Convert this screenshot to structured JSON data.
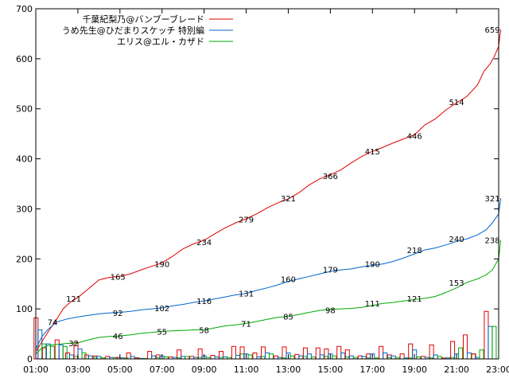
{
  "chart_data": {
    "type": "line",
    "xlim": [
      1,
      23
    ],
    "ylim": [
      0,
      700
    ],
    "y_ticks": [
      0,
      100,
      200,
      300,
      400,
      500,
      600,
      700
    ],
    "x_tick_values": [
      1,
      3,
      5,
      7,
      9,
      11,
      13,
      15,
      17,
      19,
      21,
      23
    ],
    "x_tick_labels": [
      "01:00",
      "03:00",
      "05:00",
      "07:00",
      "09:00",
      "11:00",
      "13:00",
      "15:00",
      "17:00",
      "19:00",
      "21:00",
      "23:00"
    ],
    "grid": false,
    "legend_position": "top-right",
    "series": [
      {
        "name": "千葉紀梨乃@バンブーブレード",
        "color": "#e00000",
        "x": [
          1,
          1.3,
          1.6,
          2,
          2.3,
          2.6,
          3,
          3.5,
          4,
          4.5,
          5,
          5.5,
          6,
          6.5,
          7,
          7.5,
          8,
          8.5,
          9,
          9.5,
          10,
          10.5,
          11,
          11.5,
          12,
          12.5,
          13,
          13.5,
          14,
          14.5,
          15,
          15.5,
          16,
          16.5,
          17,
          17.5,
          18,
          18.5,
          19,
          19.5,
          20,
          20.5,
          21,
          21.5,
          22,
          22.3,
          22.6,
          22.8,
          23,
          23.1
        ],
        "y": [
          15,
          35,
          55,
          80,
          100,
          112,
          123,
          140,
          158,
          163,
          165,
          170,
          178,
          185,
          192,
          205,
          220,
          230,
          237,
          250,
          262,
          272,
          280,
          290,
          302,
          312,
          320,
          332,
          348,
          360,
          368,
          378,
          392,
          405,
          415,
          423,
          432,
          440,
          448,
          468,
          480,
          498,
          512,
          525,
          548,
          575,
          590,
          605,
          625,
          659
        ],
        "labels": [
          {
            "x": 2.8,
            "y": 121,
            "text": "121"
          },
          {
            "x": 4.9,
            "y": 165,
            "text": "165"
          },
          {
            "x": 7.0,
            "y": 190,
            "text": "190"
          },
          {
            "x": 9.0,
            "y": 234,
            "text": "234"
          },
          {
            "x": 11.0,
            "y": 279,
            "text": "279"
          },
          {
            "x": 13.0,
            "y": 321,
            "text": "321"
          },
          {
            "x": 15.0,
            "y": 366,
            "text": "366"
          },
          {
            "x": 17.0,
            "y": 415,
            "text": "415"
          },
          {
            "x": 19.0,
            "y": 446,
            "text": "446"
          },
          {
            "x": 21.0,
            "y": 514,
            "text": "514"
          },
          {
            "x": 22.7,
            "y": 659,
            "text": "659"
          }
        ]
      },
      {
        "name": "うめ先生@ひだまりスケッチ 特別編",
        "color": "#0066cc",
        "x": [
          1,
          1.3,
          1.6,
          2,
          2.5,
          3,
          3.5,
          4,
          4.5,
          5,
          5.5,
          6,
          6.5,
          7,
          7.5,
          8,
          8.5,
          9,
          9.5,
          10,
          10.5,
          11,
          11.5,
          12,
          12.5,
          13,
          13.5,
          14,
          14.5,
          15,
          15.5,
          16,
          16.5,
          17,
          17.5,
          18,
          18.5,
          19,
          19.5,
          20,
          20.5,
          21,
          21.5,
          22,
          22.4,
          22.7,
          23,
          23.1
        ],
        "y": [
          20,
          45,
          60,
          74,
          80,
          84,
          87,
          90,
          92,
          93,
          95,
          98,
          100,
          102,
          106,
          109,
          113,
          116,
          120,
          124,
          128,
          131,
          137,
          142,
          148,
          155,
          160,
          165,
          170,
          175,
          178,
          180,
          184,
          187,
          190,
          195,
          202,
          210,
          218,
          222,
          228,
          235,
          240,
          248,
          258,
          272,
          290,
          321
        ],
        "labels": [
          {
            "x": 1.8,
            "y": 74,
            "text": "74"
          },
          {
            "x": 4.9,
            "y": 92,
            "text": "92"
          },
          {
            "x": 7.0,
            "y": 102,
            "text": "102"
          },
          {
            "x": 9.0,
            "y": 116,
            "text": "116"
          },
          {
            "x": 11.0,
            "y": 131,
            "text": "131"
          },
          {
            "x": 13.0,
            "y": 160,
            "text": "160"
          },
          {
            "x": 15.0,
            "y": 179,
            "text": "179"
          },
          {
            "x": 17.0,
            "y": 190,
            "text": "190"
          },
          {
            "x": 19.0,
            "y": 218,
            "text": "218"
          },
          {
            "x": 21.0,
            "y": 240,
            "text": "240"
          },
          {
            "x": 22.7,
            "y": 321,
            "text": "321"
          }
        ]
      },
      {
        "name": "エリス@エル・カザド",
        "color": "#00aa00",
        "x": [
          1,
          1.3,
          1.6,
          2,
          2.5,
          3,
          3.5,
          4,
          4.5,
          5,
          5.5,
          6,
          6.5,
          7,
          7.5,
          8,
          8.5,
          9,
          9.5,
          10,
          10.5,
          11,
          11.5,
          12,
          12.5,
          13,
          13.5,
          14,
          14.5,
          15,
          15.5,
          16,
          16.5,
          17,
          17.5,
          18,
          18.5,
          19,
          19.5,
          20,
          20.5,
          21,
          21.5,
          22,
          22.4,
          22.7,
          23,
          23.1
        ],
        "y": [
          10,
          22,
          27,
          29,
          31,
          32,
          38,
          43,
          45,
          46,
          48,
          51,
          53,
          55,
          56,
          57,
          58,
          58,
          62,
          66,
          68,
          71,
          75,
          79,
          83,
          85,
          89,
          93,
          97,
          99,
          100,
          101,
          103,
          107,
          111,
          113,
          116,
          119,
          121,
          125,
          133,
          142,
          153,
          160,
          168,
          178,
          200,
          238
        ],
        "labels": [
          {
            "x": 2.8,
            "y": 32,
            "text": "32"
          },
          {
            "x": 4.9,
            "y": 46,
            "text": "46"
          },
          {
            "x": 7.0,
            "y": 55,
            "text": "55"
          },
          {
            "x": 9.0,
            "y": 58,
            "text": "58"
          },
          {
            "x": 11.0,
            "y": 71,
            "text": "71"
          },
          {
            "x": 13.0,
            "y": 85,
            "text": "85"
          },
          {
            "x": 15.0,
            "y": 98,
            "text": "98"
          },
          {
            "x": 17.0,
            "y": 111,
            "text": "111"
          },
          {
            "x": 19.0,
            "y": 121,
            "text": "121"
          },
          {
            "x": 21.0,
            "y": 153,
            "text": "153"
          },
          {
            "x": 22.7,
            "y": 238,
            "text": "238"
          }
        ]
      }
    ],
    "bars": {
      "description_series": [
        "千葉紀梨乃@バンブーブレード",
        "うめ先生@ひだまりスケッチ 特別編",
        "エリス@エル・カザド"
      ],
      "x": [
        1.2,
        1.6,
        2.2,
        2.7,
        3.1,
        3.6,
        4.0,
        4.6,
        5.1,
        5.6,
        6.0,
        6.6,
        7.0,
        7.6,
        8.0,
        8.6,
        9.0,
        9.6,
        10.0,
        10.6,
        11.0,
        11.6,
        12.0,
        12.6,
        13.0,
        13.6,
        14.0,
        14.6,
        15.0,
        15.6,
        16.0,
        16.6,
        17.0,
        17.6,
        18.0,
        18.6,
        19.0,
        19.6,
        20.0,
        20.6,
        21.0,
        21.6,
        22.0,
        22.6
      ],
      "red": [
        82,
        22,
        38,
        12,
        33,
        8,
        6,
        5,
        3,
        12,
        2,
        15,
        8,
        4,
        18,
        5,
        20,
        7,
        15,
        25,
        24,
        12,
        24,
        6,
        24,
        9,
        22,
        22,
        20,
        25,
        18,
        6,
        10,
        25,
        8,
        10,
        30,
        5,
        28,
        2,
        35,
        48,
        10,
        95
      ],
      "blue": [
        58,
        30,
        28,
        8,
        20,
        6,
        5,
        3,
        2,
        5,
        1,
        6,
        6,
        3,
        5,
        3,
        6,
        4,
        4,
        7,
        10,
        4,
        12,
        3,
        12,
        6,
        10,
        8,
        10,
        12,
        6,
        5,
        10,
        12,
        6,
        2,
        18,
        3,
        8,
        2,
        10,
        12,
        3,
        65
      ],
      "green": [
        30,
        25,
        25,
        5,
        12,
        3,
        2,
        3,
        2,
        2,
        1,
        3,
        4,
        2,
        5,
        3,
        3,
        3,
        3,
        10,
        8,
        5,
        10,
        2,
        6,
        5,
        4,
        5,
        6,
        4,
        3,
        2,
        2,
        3,
        3,
        2,
        4,
        2,
        5,
        3,
        22,
        10,
        18,
        65
      ]
    }
  }
}
